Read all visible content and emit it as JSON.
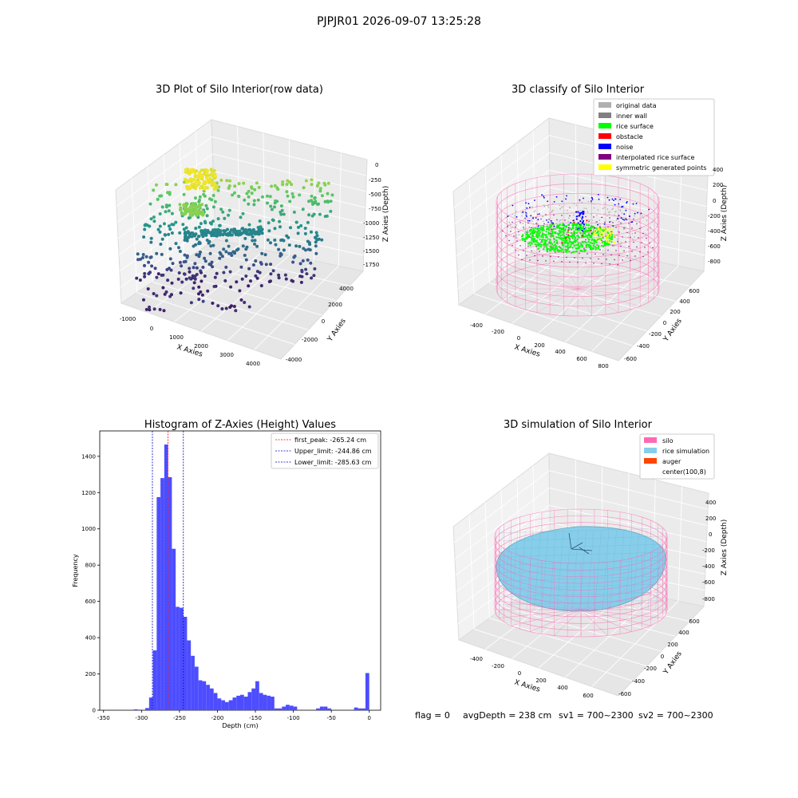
{
  "figure": {
    "suptitle": "PJPJR01 2026-09-07 13:25:28",
    "status_line": {
      "flag": "flag = 0",
      "avg_depth": "avgDepth = 238 cm",
      "sv1": "sv1 = 700~2300",
      "sv2": "sv2 = 700~2300"
    }
  },
  "chart_data": [
    {
      "type": "scatter3d",
      "title": "3D Plot of Silo Interior(row data)",
      "xlabel": "X Axies",
      "ylabel": "Y Axies",
      "zlabel": "Z Axies (Depth)",
      "x_ticks": [
        "-1000",
        "0",
        "1000",
        "2000",
        "3000",
        "4000"
      ],
      "y_ticks": [
        "-4000",
        "-2000",
        "0",
        "2000",
        "4000"
      ],
      "z_ticks": [
        "0",
        "-250",
        "-500",
        "-750",
        "-1000",
        "-1250",
        "-1500",
        "-1750"
      ],
      "xlim": [
        -1200,
        4400
      ],
      "ylim": [
        -4400,
        4400
      ],
      "zlim": [
        -1900,
        100
      ],
      "colormap": "viridis"
    },
    {
      "type": "scatter3d",
      "title": "3D classify of Silo Interior",
      "xlabel": "X Axies",
      "ylabel": "Y Axies",
      "zlabel": "Z Axies (Depth)",
      "x_ticks": [
        "-400",
        "-200",
        "0",
        "200",
        "400",
        "600",
        "800"
      ],
      "y_ticks": [
        "-600",
        "-400",
        "-200",
        "0",
        "200",
        "400",
        "600"
      ],
      "z_ticks": [
        "400",
        "200",
        "0",
        "-200",
        "-400",
        "-600",
        "-800"
      ],
      "legend_position": "top-right",
      "legend": [
        {
          "label": "original data",
          "color": "#b0b0b0"
        },
        {
          "label": "inner wall",
          "color": "#808080"
        },
        {
          "label": "rice surface",
          "color": "#00ff00"
        },
        {
          "label": "obstacle",
          "color": "#ff0000"
        },
        {
          "label": "noise",
          "color": "#0000ff"
        },
        {
          "label": "interpolated rice surface",
          "color": "#800080"
        },
        {
          "label": "symmetric generated points",
          "color": "#ffff00"
        }
      ],
      "silo_color": "#ff69b4"
    },
    {
      "type": "bar",
      "title": "Histogram of Z-Axies (Height) Values",
      "xlabel": "Depth (cm)",
      "ylabel": "Frequency",
      "xlim": [
        -355,
        15
      ],
      "ylim": [
        0,
        1540
      ],
      "x_ticks": [
        -350,
        -300,
        -250,
        -200,
        -150,
        -100,
        -50,
        0
      ],
      "y_ticks": [
        0,
        200,
        400,
        600,
        800,
        1000,
        1200,
        1400
      ],
      "bar_color": "#4d4dff",
      "bin_width": 5,
      "bins": [
        [
          -310,
          5
        ],
        [
          -305,
          3
        ],
        [
          -300,
          0
        ],
        [
          -295,
          12
        ],
        [
          -290,
          70
        ],
        [
          -285,
          330
        ],
        [
          -280,
          1175
        ],
        [
          -275,
          1280
        ],
        [
          -270,
          1465
        ],
        [
          -265,
          1285
        ],
        [
          -260,
          890
        ],
        [
          -255,
          570
        ],
        [
          -250,
          565
        ],
        [
          -245,
          515
        ],
        [
          -240,
          385
        ],
        [
          -235,
          300
        ],
        [
          -230,
          240
        ],
        [
          -225,
          165
        ],
        [
          -220,
          160
        ],
        [
          -215,
          140
        ],
        [
          -210,
          120
        ],
        [
          -205,
          95
        ],
        [
          -200,
          65
        ],
        [
          -195,
          55
        ],
        [
          -190,
          45
        ],
        [
          -185,
          55
        ],
        [
          -180,
          70
        ],
        [
          -175,
          80
        ],
        [
          -170,
          85
        ],
        [
          -165,
          75
        ],
        [
          -160,
          100
        ],
        [
          -155,
          120
        ],
        [
          -150,
          160
        ],
        [
          -145,
          95
        ],
        [
          -140,
          85
        ],
        [
          -135,
          80
        ],
        [
          -130,
          75
        ],
        [
          -125,
          10
        ],
        [
          -120,
          10
        ],
        [
          -115,
          20
        ],
        [
          -110,
          30
        ],
        [
          -105,
          25
        ],
        [
          -100,
          20
        ],
        [
          -95,
          0
        ],
        [
          -90,
          0
        ],
        [
          -85,
          0
        ],
        [
          -80,
          0
        ],
        [
          -75,
          0
        ],
        [
          -70,
          10
        ],
        [
          -65,
          20
        ],
        [
          -60,
          20
        ],
        [
          -55,
          10
        ],
        [
          -50,
          0
        ],
        [
          -45,
          0
        ],
        [
          -40,
          0
        ],
        [
          -35,
          0
        ],
        [
          -30,
          0
        ],
        [
          -25,
          0
        ],
        [
          -20,
          15
        ],
        [
          -15,
          10
        ],
        [
          -10,
          10
        ],
        [
          -5,
          205
        ]
      ],
      "vlines": [
        {
          "label": "first_peak: -265.24 cm",
          "x": -265.24,
          "color": "#ff0000"
        },
        {
          "label": "Upper_limit: -244.86 cm",
          "x": -244.86,
          "color": "#0000cc"
        },
        {
          "label": "Lower_limit: -285.63 cm",
          "x": -285.63,
          "color": "#0000cc"
        }
      ],
      "legend_position": "top-right"
    },
    {
      "type": "surface3d",
      "title": "3D simulation of Silo Interior",
      "xlabel": "X Axies",
      "ylabel": "Y Axies",
      "zlabel": "Z Axies (Depth)",
      "x_ticks": [
        "-400",
        "-200",
        "0",
        "200",
        "400",
        "600"
      ],
      "y_ticks": [
        "-600",
        "-400",
        "-200",
        "0",
        "200",
        "400",
        "600"
      ],
      "z_ticks": [
        "400",
        "200",
        "0",
        "-200",
        "-400",
        "-600",
        "-800"
      ],
      "legend_position": "top-right",
      "legend": [
        {
          "label": "silo",
          "color": "#ff69b4"
        },
        {
          "label": "rice simulation",
          "color": "#87ceeb"
        },
        {
          "label": "auger",
          "color": "#ff4500"
        },
        {
          "label": "center(100,8)",
          "color": "#ffffff"
        }
      ]
    }
  ]
}
